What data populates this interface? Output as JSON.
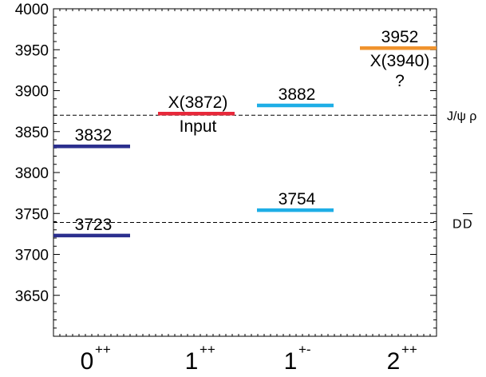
{
  "chart_data": {
    "type": "level-diagram",
    "ylim": [
      3600,
      4000
    ],
    "y_ticks": [
      3650,
      3700,
      3750,
      3800,
      3850,
      3900,
      3950,
      4000
    ],
    "categories": [
      {
        "main": "0",
        "sup": "++"
      },
      {
        "main": "1",
        "sup": "++"
      },
      {
        "main": "1",
        "sup": "+-"
      },
      {
        "main": "2",
        "sup": "++"
      }
    ],
    "thresholds": [
      {
        "label": "J/ψ ρ",
        "value": 3870
      },
      {
        "label": "D",
        "label_bar": "D",
        "value": 3739
      }
    ],
    "levels": [
      {
        "category": 0,
        "value": 3723,
        "label": "3723",
        "color": "#2b2f8e"
      },
      {
        "category": 0,
        "value": 3832,
        "label": "3832",
        "color": "#2b2f8e"
      },
      {
        "category": 1,
        "value": 3872,
        "label": "X(3872)",
        "sublabel": "Input",
        "color": "#e8283a"
      },
      {
        "category": 2,
        "value": 3754,
        "label": "3754",
        "color": "#1eaee6"
      },
      {
        "category": 2,
        "value": 3882,
        "label": "3882",
        "color": "#1eaee6"
      },
      {
        "category": 3,
        "value": 3952,
        "label": "3952",
        "sublabel": "X(3940)",
        "sublabel2": "?",
        "color": "#f0932d"
      }
    ]
  }
}
